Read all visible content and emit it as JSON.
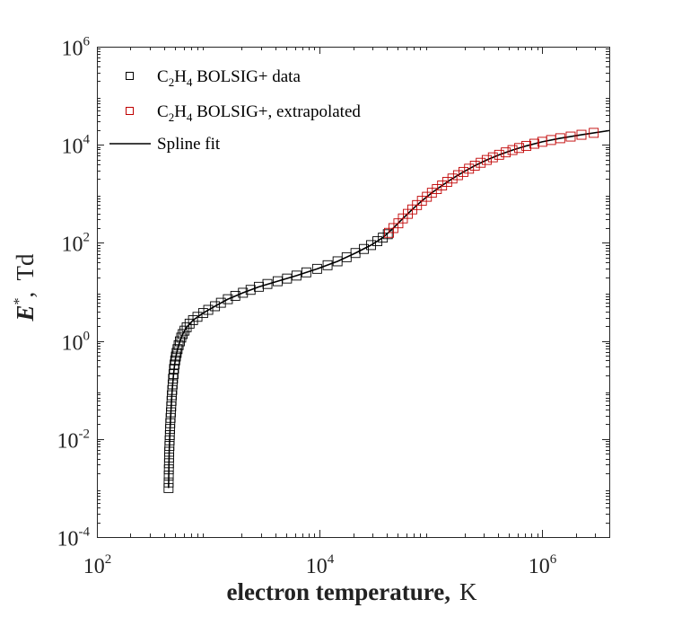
{
  "chart_data": {
    "type": "scatter",
    "xscale": "log",
    "yscale": "log",
    "xlim": [
      100,
      4000000
    ],
    "ylim": [
      0.0001,
      1000000
    ],
    "grid": false,
    "legend_placement": "top-left",
    "xlabel": {
      "bold": "electron temperature,",
      "unit": "K"
    },
    "ylabel": {
      "symbol": "E",
      "sup": "*",
      "unit": "Td"
    },
    "xticks": [
      {
        "value": 100,
        "base": "10",
        "exp": "2"
      },
      {
        "value": 10000,
        "base": "10",
        "exp": "4"
      },
      {
        "value": 1000000,
        "base": "10",
        "exp": "6"
      }
    ],
    "yticks": [
      {
        "value": 0.0001,
        "base": "10",
        "exp": "-4"
      },
      {
        "value": 0.01,
        "base": "10",
        "exp": "-2"
      },
      {
        "value": 1,
        "base": "10",
        "exp": "0"
      },
      {
        "value": 100,
        "base": "10",
        "exp": "2"
      },
      {
        "value": 10000,
        "base": "10",
        "exp": "4"
      },
      {
        "value": 1000000,
        "base": "10",
        "exp": "6"
      }
    ],
    "legend": [
      {
        "key": "data",
        "pre": "C",
        "sub1": "2",
        "mid": "H",
        "sub2": "4",
        "post": " BOLSIG+ data",
        "color": "#000000",
        "marker": "square"
      },
      {
        "key": "extrap",
        "pre": "C",
        "sub1": "2",
        "mid": "H",
        "sub2": "4",
        "post": " BOLSIG+, extrapolated",
        "color": "#c00000",
        "marker": "square"
      },
      {
        "key": "fit",
        "text": "Spline fit",
        "color": "#000000",
        "marker": "line"
      }
    ],
    "series": [
      {
        "key": "data",
        "color": "#000000",
        "marker": "square",
        "x": [
          440,
          441,
          442,
          443,
          444,
          445,
          446,
          448,
          450,
          452,
          454,
          456,
          459,
          462,
          465,
          468,
          471,
          475,
          479,
          483,
          488,
          493,
          499,
          505,
          512,
          520,
          530,
          542,
          556,
          572,
          590,
          612,
          640,
          680,
          730,
          800,
          900,
          1000,
          1150,
          1300,
          1500,
          1750,
          2050,
          2400,
          2850,
          3400,
          4200,
          5100,
          6200,
          7600,
          9500,
          11800,
          14500,
          17500,
          21000,
          25000,
          29000,
          33000,
          37000,
          41000
        ],
        "y": [
          0.001,
          0.0013,
          0.0018,
          0.0024,
          0.0032,
          0.0042,
          0.0055,
          0.0072,
          0.0094,
          0.012,
          0.016,
          0.021,
          0.027,
          0.035,
          0.046,
          0.06,
          0.078,
          0.1,
          0.13,
          0.17,
          0.21,
          0.27,
          0.33,
          0.4,
          0.48,
          0.57,
          0.68,
          0.82,
          0.98,
          1.17,
          1.38,
          1.62,
          1.9,
          2.25,
          2.65,
          3.1,
          3.7,
          4.3,
          5.1,
          6.0,
          7.1,
          8.3,
          9.6,
          11.0,
          12.7,
          14.5,
          16.5,
          18.7,
          21.5,
          25.0,
          29.5,
          35.0,
          42.0,
          51.0,
          62.0,
          75.0,
          90.0,
          108.0,
          128.0,
          150.0
        ]
      },
      {
        "key": "extrap",
        "color": "#c00000",
        "marker": "square",
        "x": [
          42000,
          46000,
          51000,
          56000,
          62000,
          68000,
          75000,
          83000,
          92000,
          102000,
          113000,
          126000,
          140000,
          156000,
          175000,
          196000,
          220000,
          248000,
          280000,
          317000,
          360000,
          410000,
          470000,
          540000,
          620000,
          720000,
          850000,
          1000000,
          1200000,
          1450000,
          1800000,
          2250000,
          2900000
        ],
        "y": [
          160,
          200,
          250,
          315,
          390,
          480,
          590,
          720,
          870,
          1050,
          1250,
          1480,
          1750,
          2050,
          2400,
          2800,
          3250,
          3750,
          4300,
          4900,
          5550,
          6250,
          7000,
          7800,
          8600,
          9500,
          10500,
          11500,
          12500,
          13600,
          14700,
          16000,
          17500
        ]
      },
      {
        "key": "fit",
        "color": "#000000",
        "marker": "line",
        "x": [
          440,
          442,
          444,
          446,
          450,
          454,
          459,
          465,
          471,
          479,
          488,
          499,
          512,
          530,
          556,
          590,
          640,
          730,
          900,
          1150,
          1500,
          2050,
          2850,
          4200,
          6200,
          9500,
          14500,
          21000,
          29000,
          37000,
          46000,
          56000,
          68000,
          83000,
          102000,
          126000,
          156000,
          196000,
          248000,
          317000,
          410000,
          540000,
          720000,
          1000000,
          1450000,
          2250000,
          4000000
        ],
        "y": [
          0.001,
          0.0018,
          0.0032,
          0.0055,
          0.0094,
          0.016,
          0.027,
          0.046,
          0.078,
          0.13,
          0.21,
          0.33,
          0.48,
          0.68,
          0.98,
          1.38,
          1.9,
          2.65,
          3.7,
          5.1,
          7.1,
          9.6,
          12.7,
          16.5,
          21.5,
          29.5,
          42.0,
          62.0,
          90.0,
          128.0,
          200.0,
          315.0,
          480.0,
          720.0,
          1050.0,
          1480.0,
          2050.0,
          2800.0,
          3750.0,
          4900.0,
          6250.0,
          7800.0,
          9500.0,
          11500.0,
          13600.0,
          16000.0,
          19500.0
        ]
      }
    ]
  }
}
